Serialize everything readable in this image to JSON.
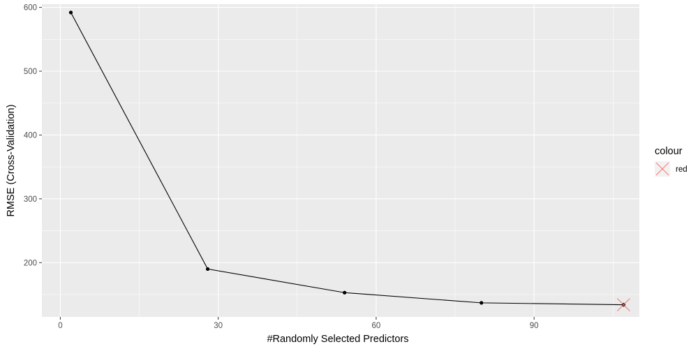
{
  "chart_data": {
    "type": "line",
    "xlabel": "#Randomly Selected Predictors",
    "ylabel": "RMSE (Cross-Validation)",
    "xlim": [
      -3.5,
      110
    ],
    "ylim": [
      115,
      605
    ],
    "x_ticks": [
      0,
      30,
      60,
      90
    ],
    "x_tick_labels": [
      "0",
      "30",
      "60",
      "90"
    ],
    "y_ticks": [
      200,
      300,
      400,
      500,
      600
    ],
    "y_tick_labels": [
      "200",
      "300",
      "400",
      "500",
      "600"
    ],
    "grid": true,
    "series": [
      {
        "x": [
          2,
          28,
          54,
          80,
          107
        ],
        "y": [
          592,
          190,
          153,
          137,
          134
        ]
      }
    ],
    "highlight": {
      "x": 107,
      "y": 134,
      "marker": "x",
      "color": "#F8766D"
    },
    "legend": {
      "title": "colour",
      "entries": [
        "red"
      ],
      "placement": "right"
    },
    "colors": {
      "panel": "#EBEBEB",
      "grid": "#FFFFFF",
      "line": "#000000",
      "highlight": "#F8766D"
    }
  }
}
